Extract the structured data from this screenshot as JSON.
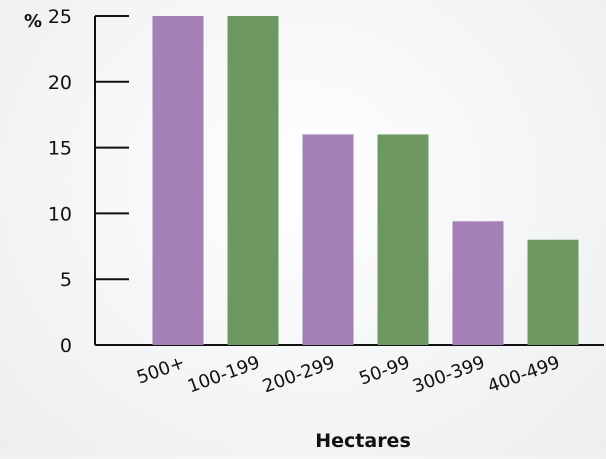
{
  "chart_data": {
    "type": "bar",
    "title": "",
    "xlabel": "Hectares",
    "ylabel": "%",
    "ylim": [
      0,
      25
    ],
    "yticks": [
      0,
      5,
      10,
      15,
      20,
      25
    ],
    "grid": false,
    "categories": [
      "500+",
      "100-199",
      "200-299",
      "50-99",
      "300-399",
      "400-499"
    ],
    "values": [
      25,
      25,
      16,
      16,
      9.4,
      8
    ],
    "colors": [
      "#a47fb8",
      "#6e9862",
      "#a47fb8",
      "#6e9862",
      "#a47fb8",
      "#6e9862"
    ],
    "axis_color": "#111111"
  }
}
